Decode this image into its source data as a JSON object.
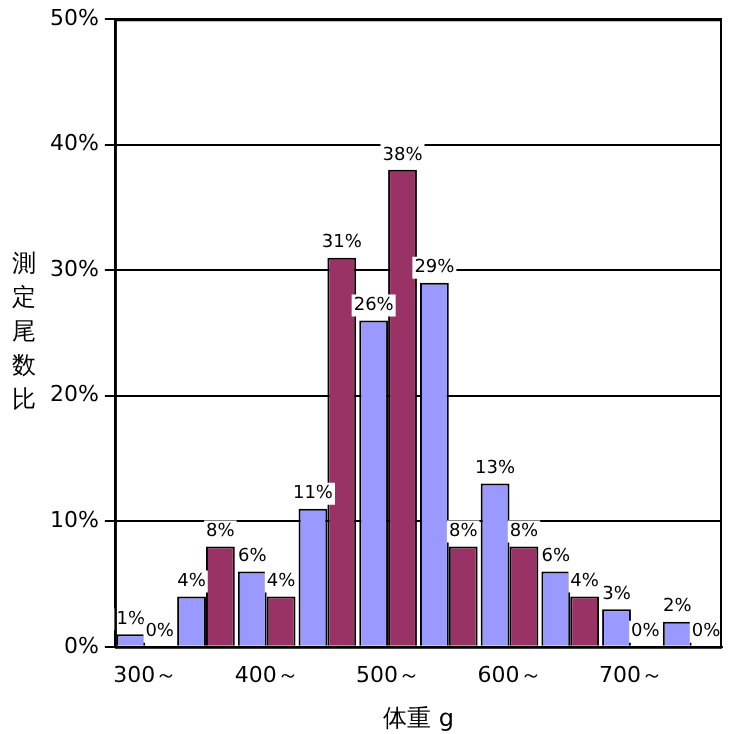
{
  "chart_data": {
    "type": "bar",
    "xlabel": "体重 g",
    "ylabel": "測定尾数比",
    "categories": [
      "300～",
      null,
      "400～",
      null,
      "500～",
      null,
      "600～",
      null,
      "700～",
      null
    ],
    "series": [
      {
        "color": "#9999ff",
        "values": [
          1,
          4,
          6,
          11,
          26,
          29,
          13,
          6,
          3,
          2
        ],
        "value_labels": [
          "1%",
          "4%",
          "6%",
          "11%",
          "26%",
          "29%",
          "13%",
          "6%",
          "3%",
          "2%"
        ]
      },
      {
        "color": "#993366",
        "values": [
          0,
          8,
          4,
          31,
          38,
          8,
          8,
          4,
          0,
          0
        ],
        "value_labels": [
          "0%",
          "8%",
          "4%",
          "31%",
          "38%",
          "8%",
          "8%",
          "4%",
          "0%",
          "0%"
        ]
      }
    ],
    "ylim": [
      0,
      50
    ],
    "yticks": [
      {
        "value": 0,
        "label": "0%"
      },
      {
        "value": 10,
        "label": "10%"
      },
      {
        "value": 20,
        "label": "20%"
      },
      {
        "value": 30,
        "label": "30%"
      },
      {
        "value": 40,
        "label": "40%"
      },
      {
        "value": 50,
        "label": "50%"
      }
    ],
    "grid": "y",
    "legend": false
  }
}
